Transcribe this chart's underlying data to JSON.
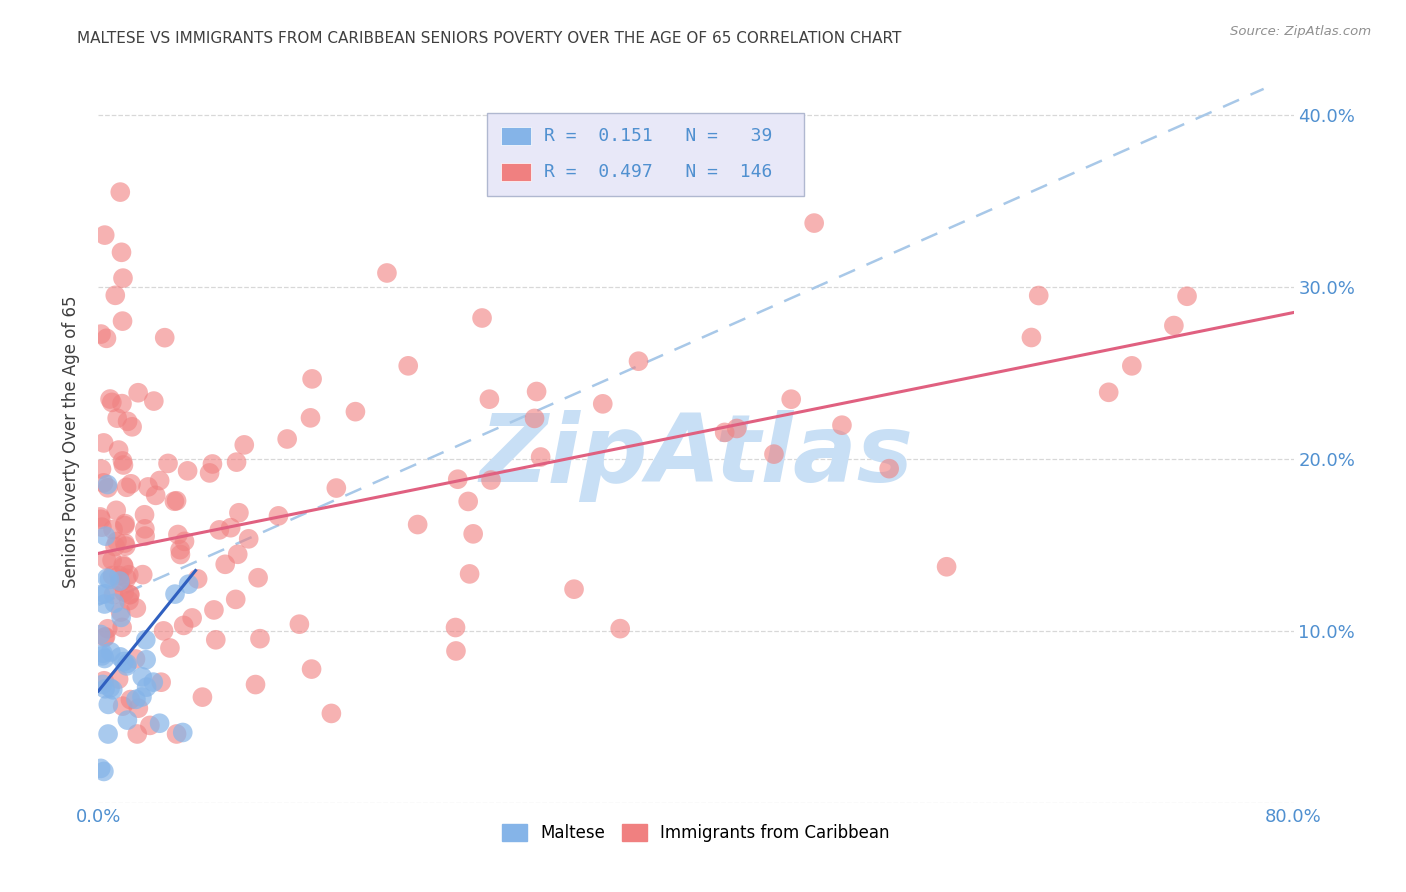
{
  "title": "MALTESE VS IMMIGRANTS FROM CARIBBEAN SENIORS POVERTY OVER THE AGE OF 65 CORRELATION CHART",
  "source": "Source: ZipAtlas.com",
  "ylabel": "Seniors Poverty Over the Age of 65",
  "xlim": [
    0,
    0.8
  ],
  "ylim": [
    0,
    0.42
  ],
  "ytick_vals": [
    0.0,
    0.1,
    0.2,
    0.3,
    0.4
  ],
  "ytick_labels": [
    "",
    "10.0%",
    "20.0%",
    "30.0%",
    "40.0%"
  ],
  "xtick_vals": [
    0.0,
    0.1,
    0.2,
    0.3,
    0.4,
    0.5,
    0.6,
    0.7,
    0.8
  ],
  "xtick_labels": [
    "0.0%",
    "",
    "",
    "",
    "",
    "",
    "",
    "",
    "80.0%"
  ],
  "maltese_R": 0.151,
  "maltese_N": 39,
  "caribbean_R": 0.497,
  "caribbean_N": 146,
  "maltese_color": "#85b4e8",
  "caribbean_color": "#f08080",
  "trendline_maltese_color": "#3060c0",
  "trendline_caribbean_color": "#e06080",
  "trendline_dashed_color": "#a8c8e8",
  "watermark_text": "ZipAtlas",
  "watermark_color": "#c8dff5",
  "background_color": "#ffffff",
  "title_color": "#404040",
  "source_color": "#909090",
  "axis_color": "#5090d0",
  "grid_color": "#d8d8d8",
  "legend_box_color": "#e8e8f8",
  "legend_border_color": "#b0b8d0",
  "maltese_trendline": [
    0.0,
    0.065,
    0.065,
    0.135
  ],
  "caribbean_trendline": [
    0.0,
    0.145,
    0.8,
    0.285
  ],
  "dashed_trendline": [
    0.0,
    0.115,
    0.78,
    0.415
  ]
}
